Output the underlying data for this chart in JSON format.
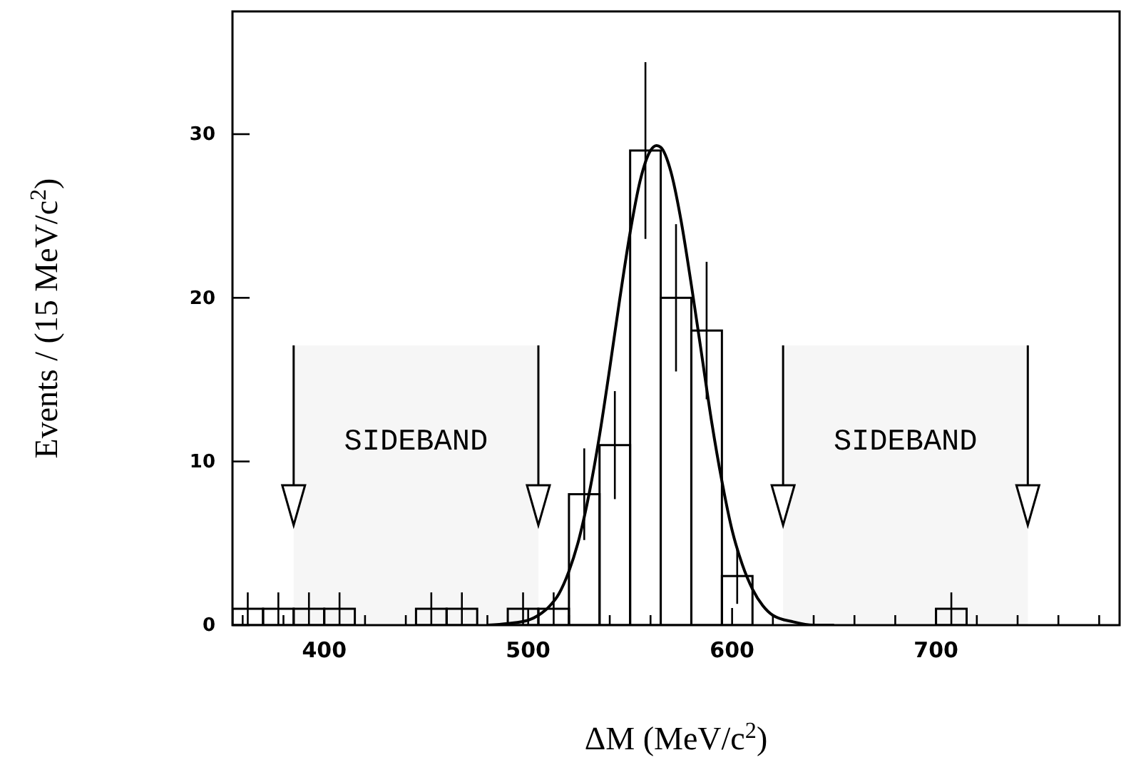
{
  "chart_data": {
    "type": "histogram",
    "xlabel": "ΔM (MeV/c$^{2}$)",
    "ylabel": "Events / (15 MeV/c$^{2}$)",
    "color": "#000000",
    "bins": [
      355,
      370,
      385,
      400,
      415,
      430,
      445,
      460,
      475,
      490,
      505,
      520,
      535,
      550,
      565,
      580,
      595,
      610,
      625,
      640,
      655,
      670,
      685,
      700,
      715
    ],
    "values": [
      1,
      1,
      1,
      1,
      0,
      0,
      1,
      1,
      0,
      1,
      1,
      8,
      11,
      29,
      20,
      18,
      3,
      0,
      0,
      0,
      0,
      0,
      0,
      1
    ],
    "errors": [
      1,
      1,
      1,
      1,
      null,
      null,
      1,
      1,
      null,
      1,
      1,
      2.8,
      3.3,
      5.4,
      4.5,
      4.2,
      1.7,
      null,
      null,
      null,
      null,
      null,
      null,
      1
    ],
    "series": [
      {
        "type": "line",
        "color": "#000000",
        "x": [
          480,
          490,
          500,
          505,
          510,
          515,
          520,
          525,
          530,
          535,
          540,
          545,
          550,
          555,
          560,
          563,
          565,
          570,
          575,
          580,
          585,
          590,
          595,
          600,
          605,
          610,
          615,
          620,
          630,
          640,
          650
        ],
        "values": [
          0,
          0.1,
          0.3,
          0.6,
          1.1,
          1.9,
          3.3,
          5.3,
          8.1,
          11.6,
          15.7,
          20,
          24,
          27.2,
          29,
          29.3,
          29.2,
          27.7,
          24.7,
          20.8,
          16.6,
          12.4,
          8.8,
          5.8,
          3.7,
          2.2,
          1.2,
          0.6,
          0.2,
          0,
          0
        ]
      }
    ],
    "xlim": [
      355,
      790
    ],
    "ylim": [
      0,
      37.5
    ],
    "xticks": [
      {
        "value": 360,
        "label": null
      },
      {
        "value": 380,
        "label": null
      },
      400,
      {
        "value": 420,
        "label": null
      },
      {
        "value": 440,
        "label": null
      },
      {
        "value": 460,
        "label": null
      },
      {
        "value": 480,
        "label": null
      },
      500,
      {
        "value": 520,
        "label": null
      },
      {
        "value": 540,
        "label": null
      },
      {
        "value": 560,
        "label": null
      },
      {
        "value": 580,
        "label": null
      },
      600,
      {
        "value": 620,
        "label": null
      },
      {
        "value": 640,
        "label": null
      },
      {
        "value": 660,
        "label": null
      },
      {
        "value": 680,
        "label": null
      },
      700,
      {
        "value": 720,
        "label": null
      },
      {
        "value": 740,
        "label": null
      },
      {
        "value": 760,
        "label": null
      },
      {
        "value": 780,
        "label": null
      }
    ],
    "yticks": [
      0,
      10,
      20,
      30
    ],
    "bands": [
      {
        "axis": "x",
        "from": 385,
        "to": 505,
        "label": "SIDEBAND"
      },
      {
        "axis": "x",
        "from": 625,
        "to": 745,
        "label": "SIDEBAND"
      }
    ]
  }
}
